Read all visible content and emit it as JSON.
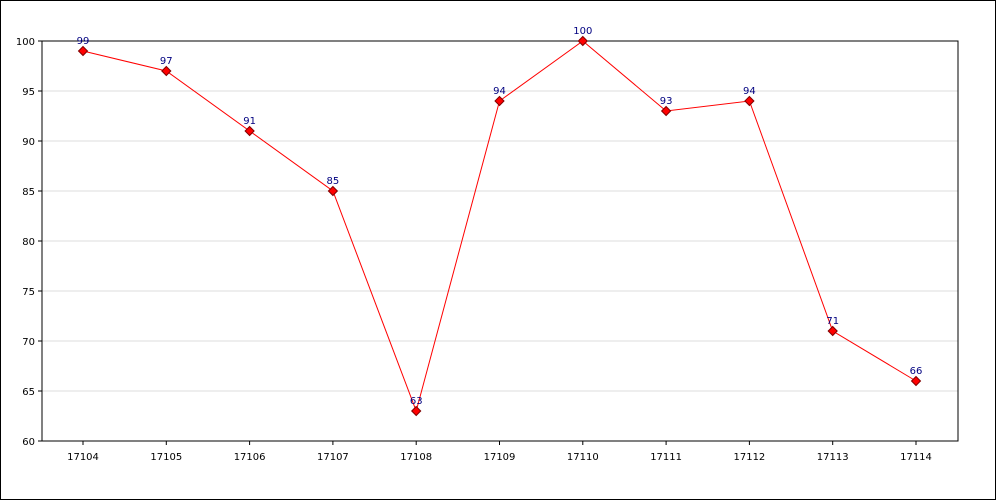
{
  "chart_data": {
    "type": "line",
    "title": "",
    "xlabel": "",
    "ylabel": "",
    "categories": [
      "17104",
      "17105",
      "17106",
      "17107",
      "17108",
      "17109",
      "17110",
      "17111",
      "17112",
      "17113",
      "17114"
    ],
    "series": [
      {
        "values": [
          99,
          97,
          91,
          85,
          63,
          94,
          100,
          93,
          94,
          71,
          66
        ]
      }
    ],
    "ylim": [
      60,
      100
    ],
    "yticks": [
      60,
      65,
      70,
      75,
      80,
      85,
      90,
      95,
      100
    ],
    "grid": true,
    "data_labels": true,
    "colors": {
      "line": "#ff0000",
      "marker_fill": "#ff0000",
      "marker_stroke": "#800000",
      "data_label": "#000080",
      "grid": "#dddddd",
      "axis": "#000000"
    }
  }
}
